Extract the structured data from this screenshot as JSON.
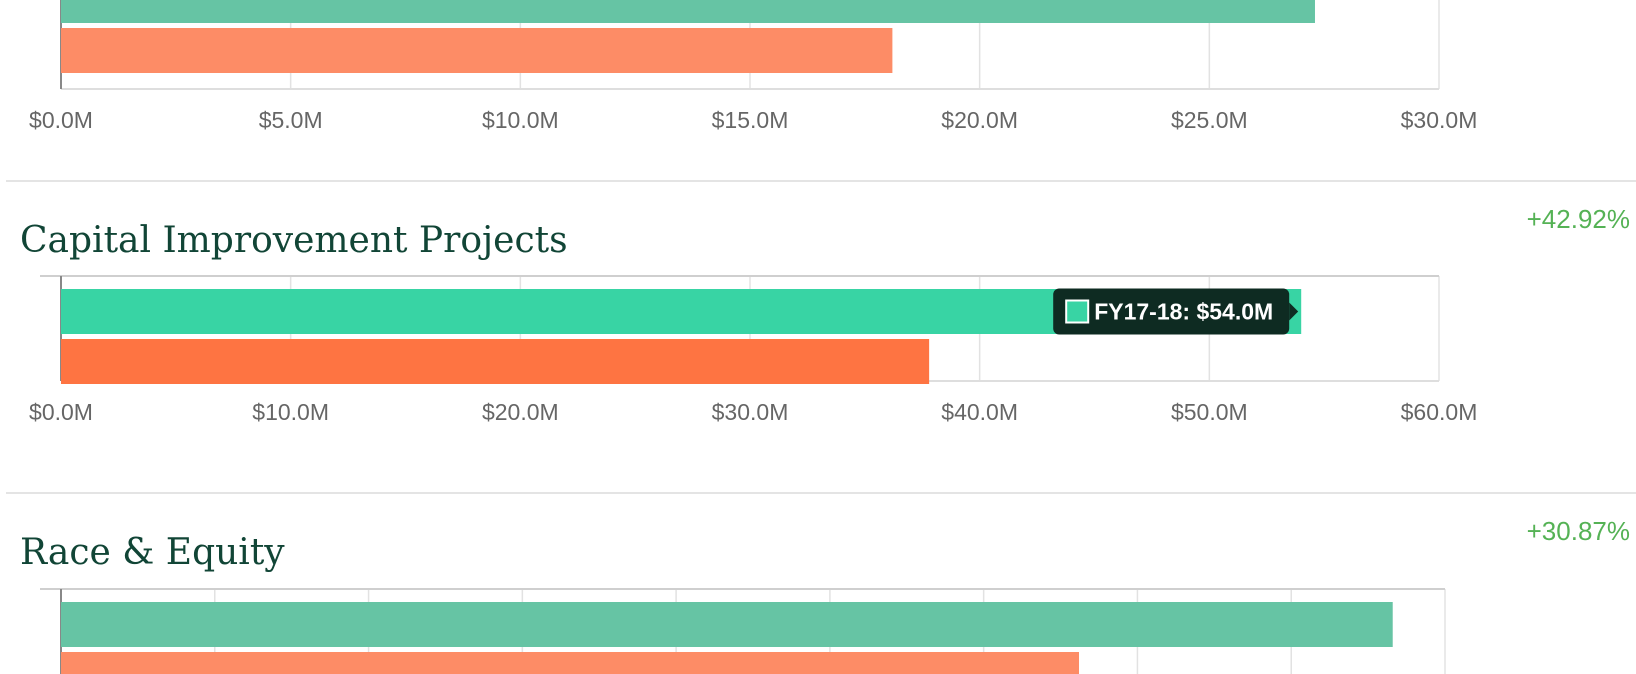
{
  "colors": {
    "fy1718": "#66c4a4",
    "fy1617": "#fd8c66",
    "fy1718_highlight": "#38d4a4",
    "fy1617_highlight": "#fe7442",
    "title": "#114536",
    "change": "#55b255",
    "tooltip_bg": "#0e2b22"
  },
  "chart_data": [
    {
      "type": "bar",
      "title": "",
      "change_label": "",
      "orientation": "horizontal",
      "xlim": [
        0,
        30
      ],
      "tick_labels": [
        "$0.0M",
        "$5.0M",
        "$10.0M",
        "$15.0M",
        "$20.0M",
        "$25.0M",
        "$30.0M"
      ],
      "series": [
        {
          "values": [
            27.3
          ]
        },
        {
          "values": [
            18.1
          ]
        }
      ],
      "grid": true,
      "clipped_top": true
    },
    {
      "type": "bar",
      "title": "Capital Improvement Projects",
      "change_label": "+42.92%",
      "orientation": "horizontal",
      "xlim": [
        0,
        60
      ],
      "tick_labels": [
        "$0.0M",
        "$10.0M",
        "$20.0M",
        "$30.0M",
        "$40.0M",
        "$50.0M",
        "$60.0M"
      ],
      "series": [
        {
          "values": [
            54.0
          ]
        },
        {
          "values": [
            37.8
          ]
        }
      ],
      "grid": true,
      "highlighted": true,
      "tooltip": {
        "text": "FY17-18: $54.0M",
        "series_index": 0
      }
    },
    {
      "type": "bar",
      "title": "Race & Equity",
      "change_label": "+30.87%",
      "orientation": "horizontal",
      "xlim": [
        0,
        9
      ],
      "tick_labels": [],
      "series": [
        {
          "values": [
            8.66
          ]
        },
        {
          "values": [
            6.62
          ]
        }
      ],
      "grid": true,
      "clipped_bottom": true
    }
  ]
}
